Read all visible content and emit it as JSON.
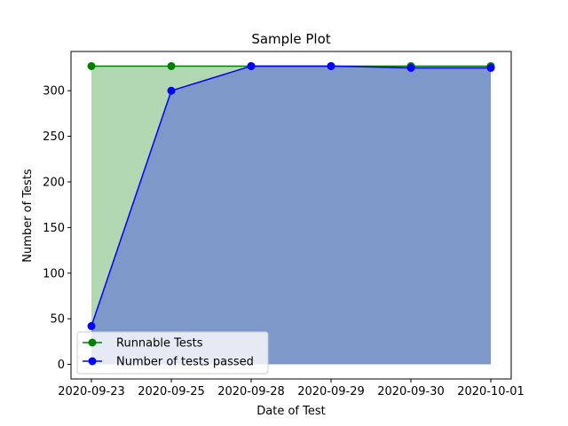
{
  "chart_data": {
    "type": "area",
    "title": "Sample Plot",
    "xlabel": "Date of Test",
    "ylabel": "Number of Tests",
    "categories": [
      "2020-09-23",
      "2020-09-25",
      "2020-09-28",
      "2020-09-29",
      "2020-09-30",
      "2020-10-01"
    ],
    "series": [
      {
        "name": "Runnable Tests",
        "values": [
          327,
          327,
          327,
          327,
          327,
          327
        ],
        "color": "#008000",
        "fill": "#b2d8b2"
      },
      {
        "name": "Number of tests passed",
        "values": [
          42,
          300,
          327,
          327,
          325,
          325
        ],
        "color": "#0000ff",
        "fill": "#7e98c9"
      }
    ],
    "yticks": [
      0,
      50,
      100,
      150,
      200,
      250,
      300
    ],
    "ylim": [
      -16,
      343
    ],
    "grid": false,
    "legend": "lower-left"
  }
}
